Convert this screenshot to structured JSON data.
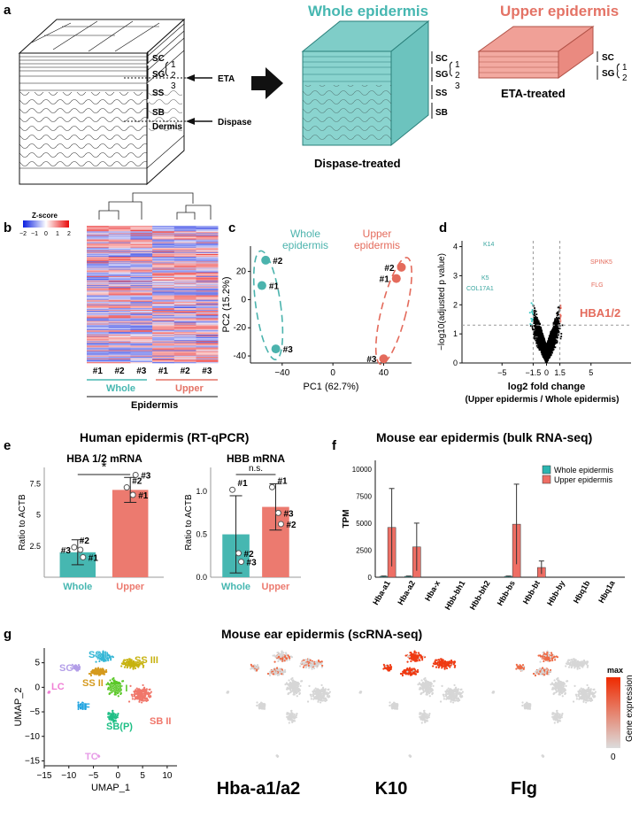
{
  "panel_labels": {
    "a": "a",
    "b": "b",
    "c": "c",
    "d": "d",
    "e": "e",
    "f": "f",
    "g": "g"
  },
  "panel_a": {
    "whole_title": "Whole epidermis",
    "upper_title": "Upper epidermis",
    "left_layers": [
      "SC",
      "SG",
      "SS",
      "SB",
      "Dermis"
    ],
    "sg_numbers": [
      "1",
      "2",
      "3"
    ],
    "eta_label": "ETA",
    "dispase_label": "Dispase",
    "whole_layers": [
      "SC",
      "SG",
      "SS",
      "SB"
    ],
    "upper_layers": [
      "SC",
      "SG"
    ],
    "upper_sg_numbers": [
      "1",
      "2"
    ],
    "dispase_caption": "Dispase-treated",
    "eta_caption": "ETA-treated",
    "colors": {
      "whole": "#7fcdc8",
      "upper": "#f0a097"
    }
  },
  "panel_b": {
    "zscore_title": "Z-score",
    "zscore_ticks": [
      "−2",
      "−1",
      "0",
      "1",
      "2"
    ],
    "sample_labels": [
      "#1",
      "#2",
      "#3",
      "#1",
      "#2",
      "#3"
    ],
    "group_whole": "Whole",
    "group_upper": "Upper",
    "footer": "Epidermis"
  },
  "panel_c": {
    "chart_data": {
      "type": "scatter",
      "xlabel": "PC1 (62.7%)",
      "ylabel": "PC2 (15.2%)",
      "xlim": [
        -65,
        62
      ],
      "ylim": [
        -45,
        38
      ],
      "xticks": [
        "−40",
        "0",
        "40"
      ],
      "yticks": [
        "-40",
        "-20",
        "0",
        "20"
      ],
      "series": [
        {
          "name": "Whole epidermis",
          "color": "#4bb3ad",
          "points": [
            {
              "x": -53,
              "y": 28,
              "label": "#2"
            },
            {
              "x": -56,
              "y": 10,
              "label": "#1"
            },
            {
              "x": -45,
              "y": -35,
              "label": "#3"
            }
          ]
        },
        {
          "name": "Upper epidermis",
          "color": "#e46b5c",
          "points": [
            {
              "x": 54,
              "y": 23,
              "label": "#2"
            },
            {
              "x": 50,
              "y": 15,
              "label": "#1"
            },
            {
              "x": 40,
              "y": -42,
              "label": "#3"
            }
          ]
        }
      ],
      "group_label_whole": [
        "Whole",
        "epidermis"
      ],
      "group_label_upper": [
        "Upper",
        "epidermis"
      ]
    }
  },
  "panel_d": {
    "chart_data": {
      "type": "scatter",
      "title": "",
      "xlabel": "log2 fold change",
      "xlabel_sub": "(Upper epidermis / Whole epidermis)",
      "ylabel": "−log10(adjusted p value)",
      "xlim": [
        -9.5,
        9.5
      ],
      "ylim": [
        0,
        4.2
      ],
      "xticks": [
        "−5",
        "−1.5",
        "0",
        "1.5",
        "5"
      ],
      "yticks": [
        "0",
        "1",
        "2",
        "3",
        "4"
      ],
      "threshold_fc": 1.5,
      "threshold_y": 1.3,
      "annotations": [
        {
          "label": "K14",
          "x": -4.6,
          "y": 4.0,
          "color": "#3aa6a0"
        },
        {
          "label": "K5",
          "x": -4.1,
          "y": 3.2,
          "color": "#3aa6a0"
        },
        {
          "label": "COL17A1",
          "x": -3.8,
          "y": 2.9,
          "color": "#3aa6a0"
        },
        {
          "label": "SPINK5",
          "x": 2.6,
          "y": 3.2,
          "color": "#e46b5c"
        },
        {
          "label": "FLG",
          "x": 2.4,
          "y": 2.4,
          "color": "#e46b5c"
        },
        {
          "label": "HBA1/2",
          "x": 1.7,
          "y": 1.35,
          "color": "#e46b5c"
        }
      ]
    }
  },
  "panel_e": {
    "title": "Human epidermis (RT-qPCR)",
    "chart_data": [
      {
        "type": "bar",
        "title": "HBA 1/2 mRNA",
        "ylabel": "Ratio to ACTB",
        "categories": [
          "Whole",
          "Upper"
        ],
        "values": [
          2.0,
          7.0
        ],
        "errors": [
          1.0,
          1.0
        ],
        "points": [
          [
            2.4,
            2.2,
            1.6
          ],
          [
            7.2,
            6.6,
            8.2
          ]
        ],
        "point_labels": [
          [
            "#2",
            "#3",
            "#1"
          ],
          [
            "#2",
            "#1",
            "#3"
          ]
        ],
        "ylim": [
          0,
          8.8
        ],
        "yticks": [
          "2.5",
          "5",
          "7.5"
        ],
        "significance": "*"
      },
      {
        "type": "bar",
        "title": "HBB mRNA",
        "ylabel": "Ratio to ACTB",
        "categories": [
          "Whole",
          "Upper"
        ],
        "values": [
          0.5,
          0.82
        ],
        "errors": [
          0.45,
          0.27
        ],
        "points": [
          [
            1.02,
            0.28,
            0.18
          ],
          [
            1.05,
            0.75,
            0.62
          ]
        ],
        "point_labels": [
          [
            "#1",
            "#2",
            "#3"
          ],
          [
            "#1",
            "#3",
            "#2"
          ]
        ],
        "ylim": [
          0,
          1.28
        ],
        "yticks": [
          "0.0",
          "0.5",
          "1.0"
        ],
        "significance": "n.s."
      }
    ]
  },
  "panel_f": {
    "title": "Mouse ear epidermis (bulk RNA-seq)",
    "chart_data": {
      "type": "bar",
      "ylabel": "TPM",
      "categories": [
        "Hba-a1",
        "Hba-a2",
        "Hba-x",
        "Hbb-bh1",
        "Hbb-bh2",
        "Hbb-bs",
        "Hbb-bt",
        "Hbb-by",
        "Hbq1b",
        "Hbq1a"
      ],
      "series": [
        {
          "name": "Whole epidermis",
          "color": "#2bb5b0",
          "values": [
            80,
            80,
            0,
            0,
            0,
            80,
            0,
            0,
            0,
            0
          ],
          "errors": [
            30,
            30,
            0,
            0,
            0,
            30,
            0,
            0,
            0,
            0
          ]
        },
        {
          "name": "Upper epidermis",
          "color": "#ee6e64",
          "values": [
            4600,
            2800,
            0,
            0,
            0,
            4900,
            900,
            0,
            0,
            0
          ],
          "errors": [
            3600,
            2200,
            0,
            0,
            0,
            3700,
            600,
            0,
            0,
            0
          ]
        }
      ],
      "ylim": [
        0,
        10800
      ],
      "yticks": [
        "0",
        "2500",
        "5000",
        "7500",
        "10000"
      ]
    }
  },
  "panel_g": {
    "title": "Mouse ear epidermis (scRNA-seq)",
    "xlabel": "UMAP_1",
    "ylabel": "UMAP_2",
    "xticks": [
      "−15",
      "−10",
      "−5",
      "0",
      "5",
      "10"
    ],
    "yticks": [
      "5",
      "0",
      "−5",
      "−10",
      "−15"
    ],
    "clusters": [
      {
        "label": "SS I",
        "color": "#35b7d6"
      },
      {
        "label": "SS III",
        "color": "#c7b20f"
      },
      {
        "label": "SG",
        "color": "#b39ee8"
      },
      {
        "label": "SS II",
        "color": "#d59a1d"
      },
      {
        "label": "LC",
        "color": "#f07fd5"
      },
      {
        "label": "SB I",
        "color": "#5cc82a"
      },
      {
        "label": "HF",
        "color": "#1fa3e0"
      },
      {
        "label": "SB II",
        "color": "#f0776b"
      },
      {
        "label": "SB(P)",
        "color": "#1fbf86"
      },
      {
        "label": "TC",
        "color": "#e79be7"
      }
    ],
    "feature_labels": [
      "Hba-a1/a2",
      "K10",
      "Flg"
    ],
    "legend_title": "Gene expression",
    "legend_max": "max",
    "legend_min": "0"
  }
}
